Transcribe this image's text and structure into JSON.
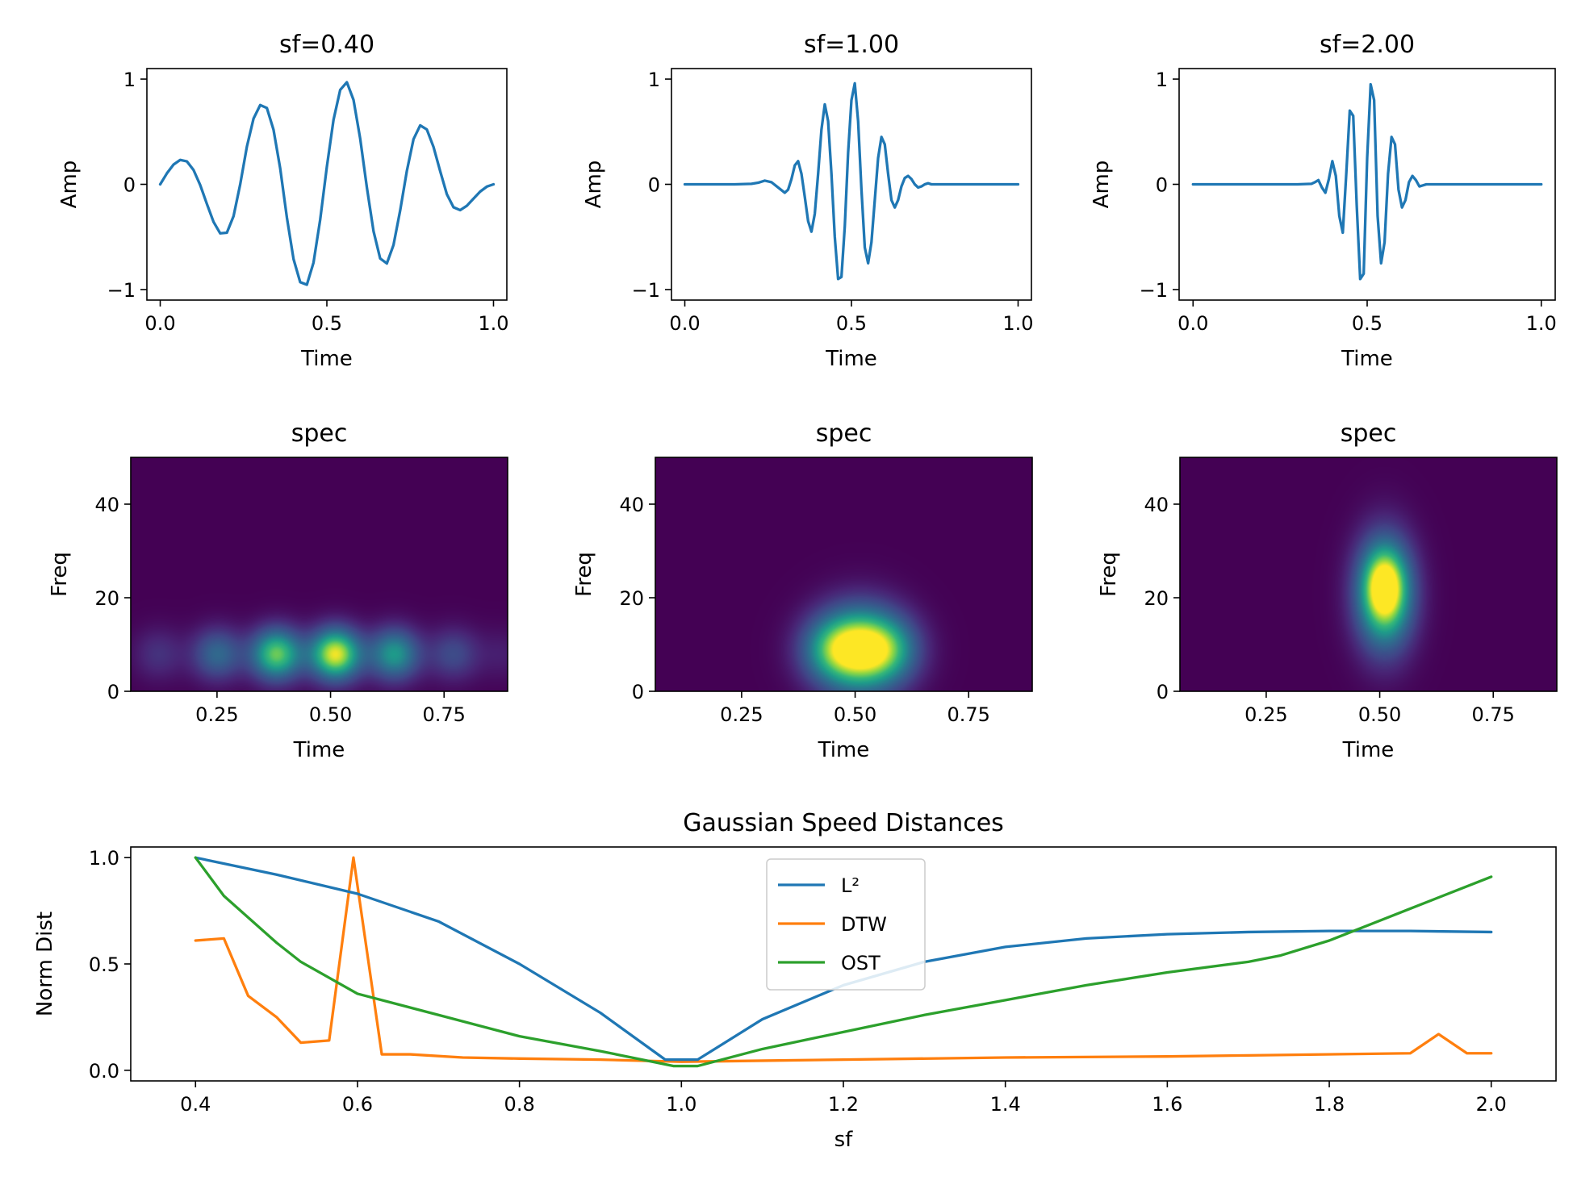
{
  "chart_data": [
    {
      "type": "line",
      "panel": "wave-sf-0.40",
      "title": "sf=0.40",
      "xlabel": "Time",
      "ylabel": "Amp",
      "xlim": [
        -0.04,
        1.04
      ],
      "ylim": [
        -1.1,
        1.1
      ],
      "xticks": [
        0.0,
        0.5,
        1.0
      ],
      "xtick_labels": [
        "0.0",
        "0.5",
        "1.0"
      ],
      "yticks": [
        -1,
        0,
        1
      ],
      "ytick_labels": [
        "−1",
        "0",
        "1"
      ],
      "series": [
        {
          "color": "#1f77b4",
          "x": [
            0.0,
            0.02,
            0.04,
            0.06,
            0.08,
            0.1,
            0.12,
            0.14,
            0.16,
            0.18,
            0.2,
            0.22,
            0.24,
            0.26,
            0.28,
            0.3,
            0.32,
            0.34,
            0.36,
            0.38,
            0.4,
            0.42,
            0.44,
            0.46,
            0.48,
            0.5,
            0.52,
            0.54,
            0.56,
            0.58,
            0.6,
            0.62,
            0.64,
            0.66,
            0.68,
            0.7,
            0.72,
            0.74,
            0.76,
            0.78,
            0.8,
            0.82,
            0.84,
            0.86,
            0.88,
            0.9,
            0.92,
            0.94,
            0.96,
            0.98,
            1.0
          ],
          "y": [
            0.0,
            0.104,
            0.188,
            0.232,
            0.218,
            0.136,
            -0.007,
            -0.186,
            -0.357,
            -0.466,
            -0.46,
            -0.303,
            0.0,
            0.357,
            0.625,
            0.753,
            0.725,
            0.518,
            0.151,
            -0.314,
            -0.71,
            -0.93,
            -0.954,
            -0.744,
            -0.335,
            0.167,
            0.613,
            0.897,
            0.97,
            0.802,
            0.434,
            -0.029,
            -0.445,
            -0.705,
            -0.752,
            -0.576,
            -0.248,
            0.127,
            0.429,
            0.56,
            0.521,
            0.355,
            0.125,
            -0.094,
            -0.218,
            -0.245,
            -0.204,
            -0.136,
            -0.069,
            -0.022,
            0.0
          ]
        }
      ]
    },
    {
      "type": "line",
      "panel": "wave-sf-1.00",
      "title": "sf=1.00",
      "xlabel": "Time",
      "ylabel": "Amp",
      "xlim": [
        -0.04,
        1.04
      ],
      "ylim": [
        -1.1,
        1.1
      ],
      "xticks": [
        0.0,
        0.5,
        1.0
      ],
      "xtick_labels": [
        "0.0",
        "0.5",
        "1.0"
      ],
      "yticks": [
        -1,
        0,
        1
      ],
      "ytick_labels": [
        "−1",
        "0",
        "1"
      ],
      "series": [
        {
          "color": "#1f77b4",
          "x": [
            0.0,
            0.05,
            0.1,
            0.15,
            0.2,
            0.22,
            0.24,
            0.26,
            0.28,
            0.3,
            0.31,
            0.32,
            0.33,
            0.34,
            0.35,
            0.36,
            0.37,
            0.38,
            0.39,
            0.4,
            0.41,
            0.42,
            0.43,
            0.44,
            0.45,
            0.46,
            0.47,
            0.48,
            0.49,
            0.5,
            0.51,
            0.52,
            0.53,
            0.54,
            0.55,
            0.56,
            0.57,
            0.58,
            0.59,
            0.6,
            0.61,
            0.62,
            0.63,
            0.64,
            0.65,
            0.66,
            0.67,
            0.68,
            0.69,
            0.7,
            0.71,
            0.72,
            0.73,
            0.74,
            0.76,
            0.78,
            0.8,
            0.85,
            0.9,
            0.95,
            1.0
          ],
          "y": [
            0.0,
            0.0,
            0.0,
            0.0,
            0.005,
            0.015,
            0.035,
            0.02,
            -0.03,
            -0.08,
            -0.05,
            0.05,
            0.18,
            0.22,
            0.1,
            -0.12,
            -0.35,
            -0.45,
            -0.28,
            0.1,
            0.52,
            0.76,
            0.6,
            0.1,
            -0.5,
            -0.9,
            -0.88,
            -0.4,
            0.3,
            0.8,
            0.96,
            0.6,
            -0.05,
            -0.6,
            -0.75,
            -0.55,
            -0.15,
            0.25,
            0.45,
            0.38,
            0.1,
            -0.15,
            -0.22,
            -0.15,
            -0.02,
            0.06,
            0.08,
            0.05,
            0.0,
            -0.03,
            -0.02,
            0.0,
            0.01,
            0.0,
            0.0,
            0.0,
            0.0,
            0.0,
            0.0,
            0.0,
            0.0
          ]
        }
      ]
    },
    {
      "type": "line",
      "panel": "wave-sf-2.00",
      "title": "sf=2.00",
      "xlabel": "Time",
      "ylabel": "Amp",
      "xlim": [
        -0.04,
        1.04
      ],
      "ylim": [
        -1.1,
        1.1
      ],
      "xticks": [
        0.0,
        0.5,
        1.0
      ],
      "xtick_labels": [
        "0.0",
        "0.5",
        "1.0"
      ],
      "yticks": [
        -1,
        0,
        1
      ],
      "ytick_labels": [
        "−1",
        "0",
        "1"
      ],
      "series": [
        {
          "color": "#1f77b4",
          "x": [
            0.0,
            0.1,
            0.2,
            0.3,
            0.34,
            0.35,
            0.36,
            0.37,
            0.38,
            0.39,
            0.4,
            0.41,
            0.42,
            0.43,
            0.44,
            0.45,
            0.46,
            0.47,
            0.48,
            0.49,
            0.5,
            0.51,
            0.52,
            0.53,
            0.54,
            0.55,
            0.56,
            0.57,
            0.58,
            0.59,
            0.6,
            0.61,
            0.62,
            0.63,
            0.64,
            0.65,
            0.66,
            0.67,
            0.7,
            0.8,
            0.9,
            1.0
          ],
          "y": [
            0.0,
            0.0,
            0.0,
            0.0,
            0.005,
            0.02,
            0.04,
            -0.03,
            -0.08,
            0.05,
            0.22,
            0.08,
            -0.3,
            -0.46,
            0.1,
            0.7,
            0.65,
            -0.2,
            -0.9,
            -0.85,
            0.25,
            0.95,
            0.8,
            -0.3,
            -0.75,
            -0.55,
            0.1,
            0.45,
            0.38,
            -0.05,
            -0.22,
            -0.15,
            0.02,
            0.08,
            0.04,
            -0.02,
            -0.01,
            0.0,
            0.0,
            0.0,
            0.0,
            0.0
          ]
        }
      ]
    },
    {
      "type": "heatmap",
      "panel": "spec-sf-0.40",
      "title": "spec",
      "xlabel": "Time",
      "ylabel": "Freq",
      "colormap": "viridis",
      "xlim": [
        0.06,
        0.89
      ],
      "ylim": [
        0,
        50
      ],
      "xticks": [
        0.25,
        0.5,
        0.75
      ],
      "xtick_labels": [
        "0.25",
        "0.50",
        "0.75"
      ],
      "yticks": [
        0,
        20,
        40
      ],
      "ytick_labels": [
        "0",
        "20",
        "40"
      ],
      "blobs": [
        {
          "t": 0.12,
          "f": 8,
          "intensity": 0.18,
          "sigma_t": 0.04,
          "sigma_f": 4
        },
        {
          "t": 0.25,
          "f": 8,
          "intensity": 0.42,
          "sigma_t": 0.04,
          "sigma_f": 4
        },
        {
          "t": 0.38,
          "f": 8,
          "intensity": 0.82,
          "sigma_t": 0.04,
          "sigma_f": 4
        },
        {
          "t": 0.51,
          "f": 8,
          "intensity": 0.98,
          "sigma_t": 0.04,
          "sigma_f": 4
        },
        {
          "t": 0.64,
          "f": 8,
          "intensity": 0.62,
          "sigma_t": 0.04,
          "sigma_f": 4
        },
        {
          "t": 0.77,
          "f": 8,
          "intensity": 0.28,
          "sigma_t": 0.04,
          "sigma_f": 4
        },
        {
          "t": 0.88,
          "f": 8,
          "intensity": 0.1,
          "sigma_t": 0.04,
          "sigma_f": 4
        }
      ]
    },
    {
      "type": "heatmap",
      "panel": "spec-sf-1.00",
      "title": "spec",
      "xlabel": "Time",
      "ylabel": "Freq",
      "colormap": "viridis",
      "xlim": [
        0.06,
        0.89
      ],
      "ylim": [
        0,
        50
      ],
      "xticks": [
        0.25,
        0.5,
        0.75
      ],
      "xtick_labels": [
        "0.25",
        "0.50",
        "0.75"
      ],
      "yticks": [
        0,
        20,
        40
      ],
      "ytick_labels": [
        "0",
        "20",
        "40"
      ],
      "blobs": [
        {
          "t": 0.51,
          "f": 9,
          "intensity": 0.98,
          "sigma_t": 0.065,
          "sigma_f": 6.5
        },
        {
          "t": 0.44,
          "f": 9,
          "intensity": 0.35,
          "sigma_t": 0.05,
          "sigma_f": 5
        },
        {
          "t": 0.58,
          "f": 9,
          "intensity": 0.35,
          "sigma_t": 0.05,
          "sigma_f": 5
        }
      ]
    },
    {
      "type": "heatmap",
      "panel": "spec-sf-2.00",
      "title": "spec",
      "xlabel": "Time",
      "ylabel": "Freq",
      "colormap": "viridis",
      "xlim": [
        0.06,
        0.89
      ],
      "ylim": [
        0,
        50
      ],
      "xticks": [
        0.25,
        0.5,
        0.75
      ],
      "xtick_labels": [
        "0.25",
        "0.50",
        "0.75"
      ],
      "yticks": [
        0,
        20,
        40
      ],
      "ytick_labels": [
        "0",
        "20",
        "40"
      ],
      "blobs": [
        {
          "t": 0.51,
          "f": 21,
          "intensity": 0.95,
          "sigma_t": 0.045,
          "sigma_f": 8.5
        },
        {
          "t": 0.51,
          "f": 23,
          "intensity": 0.35,
          "sigma_t": 0.03,
          "sigma_f": 5
        }
      ]
    },
    {
      "type": "line",
      "panel": "distances",
      "title": "Gaussian Speed Distances",
      "xlabel": "sf",
      "ylabel": "Norm Dist",
      "xlim": [
        0.32,
        2.08
      ],
      "ylim": [
        -0.05,
        1.05
      ],
      "xticks": [
        0.4,
        0.6,
        0.8,
        1.0,
        1.2,
        1.4,
        1.6,
        1.8,
        2.0
      ],
      "xtick_labels": [
        "0.4",
        "0.6",
        "0.8",
        "1.0",
        "1.2",
        "1.4",
        "1.6",
        "1.8",
        "2.0"
      ],
      "yticks": [
        0.0,
        0.5,
        1.0
      ],
      "ytick_labels": [
        "0.0",
        "0.5",
        "1.0"
      ],
      "legend": "top-center",
      "series": [
        {
          "name": "L²",
          "color": "#1f77b4",
          "x": [
            0.4,
            0.5,
            0.6,
            0.7,
            0.8,
            0.9,
            0.98,
            1.02,
            1.1,
            1.2,
            1.3,
            1.4,
            1.5,
            1.6,
            1.7,
            1.8,
            1.9,
            2.0
          ],
          "y": [
            1.0,
            0.92,
            0.83,
            0.7,
            0.5,
            0.27,
            0.05,
            0.05,
            0.24,
            0.4,
            0.51,
            0.58,
            0.62,
            0.64,
            0.65,
            0.655,
            0.655,
            0.65
          ]
        },
        {
          "name": "DTW",
          "color": "#ff7f0e",
          "x": [
            0.4,
            0.435,
            0.465,
            0.5,
            0.53,
            0.565,
            0.595,
            0.63,
            0.665,
            0.73,
            0.8,
            0.9,
            1.0,
            1.1,
            1.2,
            1.4,
            1.6,
            1.7,
            1.9,
            1.935,
            1.97,
            2.0
          ],
          "y": [
            0.61,
            0.62,
            0.35,
            0.25,
            0.13,
            0.14,
            1.0,
            0.075,
            0.075,
            0.06,
            0.055,
            0.05,
            0.04,
            0.045,
            0.05,
            0.06,
            0.065,
            0.07,
            0.08,
            0.17,
            0.08,
            0.08
          ],
          "z": 1
        },
        {
          "name": "OST",
          "color": "#2ca02c",
          "x": [
            0.4,
            0.435,
            0.5,
            0.53,
            0.6,
            0.7,
            0.8,
            0.9,
            0.99,
            1.02,
            1.1,
            1.2,
            1.3,
            1.4,
            1.5,
            1.6,
            1.7,
            1.74,
            1.8,
            1.9,
            2.0
          ],
          "y": [
            1.0,
            0.82,
            0.6,
            0.51,
            0.36,
            0.26,
            0.16,
            0.09,
            0.02,
            0.02,
            0.1,
            0.18,
            0.26,
            0.33,
            0.4,
            0.46,
            0.51,
            0.54,
            0.61,
            0.76,
            0.91
          ]
        }
      ]
    }
  ]
}
